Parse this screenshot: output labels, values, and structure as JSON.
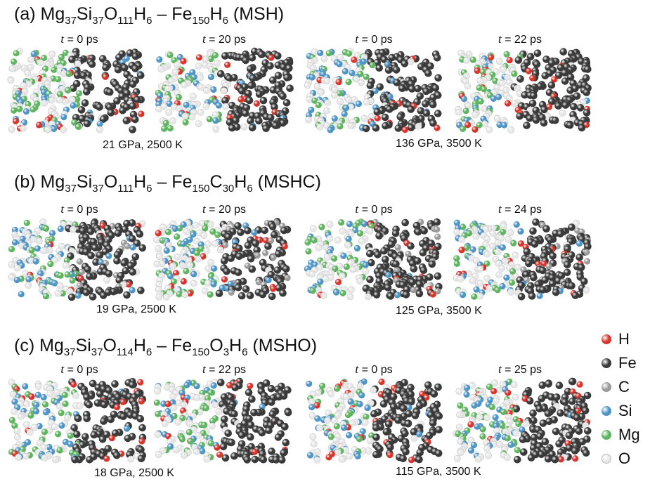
{
  "colors": {
    "H": "#d9342b",
    "Fe": "#3a3a3a",
    "C": "#9b9b9b",
    "Si": "#4e95c6",
    "Mg": "#5fb460",
    "O": "#e8e8e8"
  },
  "rows": [
    {
      "title_parts": [
        {
          "t": "(a) Mg",
          "s": "37"
        },
        {
          "t": "Si",
          "s": "37"
        },
        {
          "t": "O",
          "s": "111"
        },
        {
          "t": "H",
          "s": "6"
        },
        {
          "t": " – Fe",
          "s": "150"
        },
        {
          "t": "H",
          "s": "6"
        },
        {
          "t": " (MSH)",
          "s": ""
        }
      ],
      "panels": [
        {
          "time_prefix": "t",
          "time_value": " = 0 ps"
        },
        {
          "time_prefix": "t",
          "time_value": " = 20 ps"
        },
        {
          "time_prefix": "t",
          "time_value": " = 0 ps"
        },
        {
          "time_prefix": "t",
          "time_value": " = 22 ps"
        }
      ],
      "conditions": [
        "21 GPa, 2500 K",
        "136 GPa, 3500 K"
      ]
    },
    {
      "title_parts": [
        {
          "t": "(b) Mg",
          "s": "37"
        },
        {
          "t": "Si",
          "s": "37"
        },
        {
          "t": "O",
          "s": "111"
        },
        {
          "t": "H",
          "s": "6"
        },
        {
          "t": " – Fe",
          "s": "150"
        },
        {
          "t": "C",
          "s": "30"
        },
        {
          "t": "H",
          "s": "6"
        },
        {
          "t": " (MSHC)",
          "s": ""
        }
      ],
      "panels": [
        {
          "time_prefix": "t",
          "time_value": " = 0 ps"
        },
        {
          "time_prefix": "t",
          "time_value": " = 20 ps"
        },
        {
          "time_prefix": "t",
          "time_value": " = 0 ps"
        },
        {
          "time_prefix": "t",
          "time_value": " = 24 ps"
        }
      ],
      "conditions": [
        "19 GPa, 2500 K",
        "125 GPa, 3500 K"
      ]
    },
    {
      "title_parts": [
        {
          "t": "(c) Mg",
          "s": "37"
        },
        {
          "t": "Si",
          "s": "37"
        },
        {
          "t": "O",
          "s": "114"
        },
        {
          "t": "H",
          "s": "6"
        },
        {
          "t": " – Fe",
          "s": "150"
        },
        {
          "t": "O",
          "s": "3"
        },
        {
          "t": "H",
          "s": "6"
        },
        {
          "t": " (MSHO)",
          "s": ""
        }
      ],
      "panels": [
        {
          "time_prefix": "t",
          "time_value": " = 0 ps"
        },
        {
          "time_prefix": "t",
          "time_value": " = 22 ps"
        },
        {
          "time_prefix": "t",
          "time_value": " = 0 ps"
        },
        {
          "time_prefix": "t",
          "time_value": " = 25 ps"
        }
      ],
      "conditions": [
        "18 GPa, 2500 K",
        "115 GPa, 3500 K"
      ]
    }
  ],
  "legend": [
    {
      "label": "H",
      "key": "H"
    },
    {
      "label": "Fe",
      "key": "Fe"
    },
    {
      "label": "C",
      "key": "C"
    },
    {
      "label": "Si",
      "key": "Si"
    },
    {
      "label": "Mg",
      "key": "Mg"
    },
    {
      "label": "O",
      "key": "O"
    }
  ]
}
